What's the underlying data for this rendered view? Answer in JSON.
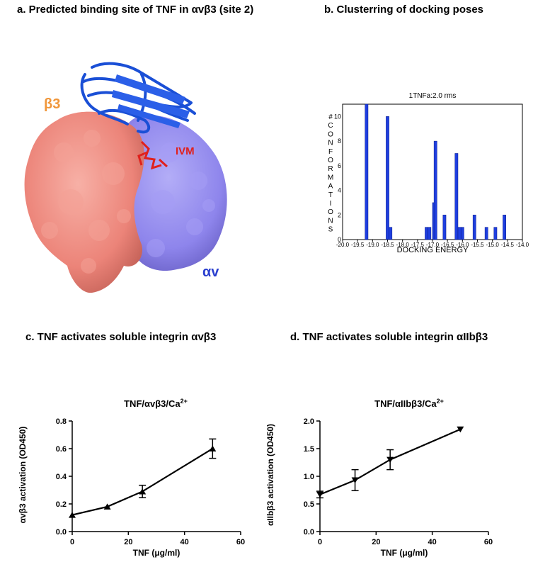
{
  "panels": {
    "a": {
      "title": "a. Predicted binding site of TNF in αvβ3 (site 2)",
      "label_b3": "β3",
      "label_av": "αv",
      "label_ivm": "IVM",
      "colors": {
        "b3": "#f08a80",
        "av": "#8f86ee",
        "tnf": "#1a4fd6",
        "ivm": "#e0201c",
        "b3_label": "#f0963a",
        "av_label": "#2a3fcf"
      }
    },
    "b": {
      "title": "b.  Clusterring of docking poses"
    },
    "c": {
      "title": "c. TNF activates soluble integrin αvβ3"
    },
    "d": {
      "title": "d. TNF activates soluble integrin αIIbβ3"
    }
  },
  "chart_data": [
    {
      "id": "b",
      "type": "bar",
      "title": "1TNFa:2.0 rms",
      "xlabel": "DOCKING ENERGY",
      "ylabel": "# C O N F O R M A T I O N S",
      "ylabel_letters": [
        "#",
        "C",
        "O",
        "N",
        "F",
        "O",
        "R",
        "M",
        "A",
        "T",
        "I",
        "O",
        "N",
        "S"
      ],
      "xlim": [
        -20.0,
        -14.0
      ],
      "ylim": [
        0,
        11
      ],
      "xticks": [
        "-20.0",
        "-19.5",
        "-19.0",
        "-18.5",
        "-18.0",
        "-17.5",
        "-17.0",
        "-16.5",
        "-16.0",
        "-15.5",
        "-15.0",
        "-14.5",
        "-14.0"
      ],
      "yticks": [
        "0",
        "2",
        "4",
        "6",
        "8",
        "10"
      ],
      "bar_width": 0.1,
      "bars": [
        {
          "x": -19.2,
          "y": 11
        },
        {
          "x": -18.5,
          "y": 10
        },
        {
          "x": -18.4,
          "y": 1
        },
        {
          "x": -17.2,
          "y": 1
        },
        {
          "x": -17.1,
          "y": 1
        },
        {
          "x": -16.95,
          "y": 3
        },
        {
          "x": -16.9,
          "y": 8
        },
        {
          "x": -16.6,
          "y": 2
        },
        {
          "x": -16.2,
          "y": 7
        },
        {
          "x": -16.1,
          "y": 1
        },
        {
          "x": -16.0,
          "y": 1
        },
        {
          "x": -15.6,
          "y": 2
        },
        {
          "x": -15.2,
          "y": 1
        },
        {
          "x": -14.9,
          "y": 1
        },
        {
          "x": -14.6,
          "y": 2
        }
      ],
      "color": "#1f3fe0"
    },
    {
      "id": "c",
      "type": "line",
      "title": "TNF/αvβ3/Ca",
      "title_sup": "2+",
      "xlabel": "TNF (μg/ml)",
      "ylabel": "αvβ3 activation (OD450)",
      "xlim": [
        0,
        60
      ],
      "ylim": [
        0,
        0.8
      ],
      "xticks": [
        "0",
        "20",
        "40",
        "60"
      ],
      "yticks": [
        "0.0",
        "0.2",
        "0.4",
        "0.6",
        "0.8"
      ],
      "marker": "triangle-up",
      "points": [
        {
          "x": 0,
          "y": 0.12,
          "err": 0
        },
        {
          "x": 12.5,
          "y": 0.18,
          "err": 0
        },
        {
          "x": 25,
          "y": 0.29,
          "err": 0.045
        },
        {
          "x": 50,
          "y": 0.6,
          "err": 0.07
        }
      ]
    },
    {
      "id": "d",
      "type": "line",
      "title": "TNF/αIIbβ3/Ca",
      "title_sup": "2+",
      "xlabel": "TNF (μg/ml)",
      "ylabel": "αIIbβ3 activation (OD450)",
      "xlim": [
        0,
        60
      ],
      "ylim": [
        0,
        2.0
      ],
      "xticks": [
        "0",
        "20",
        "40",
        "60"
      ],
      "yticks": [
        "0.0",
        "0.5",
        "1.0",
        "1.5",
        "2.0"
      ],
      "marker": "triangle-down",
      "points": [
        {
          "x": 0,
          "y": 0.67,
          "err": 0.06
        },
        {
          "x": 12.5,
          "y": 0.93,
          "err": 0.19
        },
        {
          "x": 25,
          "y": 1.3,
          "err": 0.18
        },
        {
          "x": 50,
          "y": 1.85,
          "err": 0
        }
      ]
    }
  ]
}
